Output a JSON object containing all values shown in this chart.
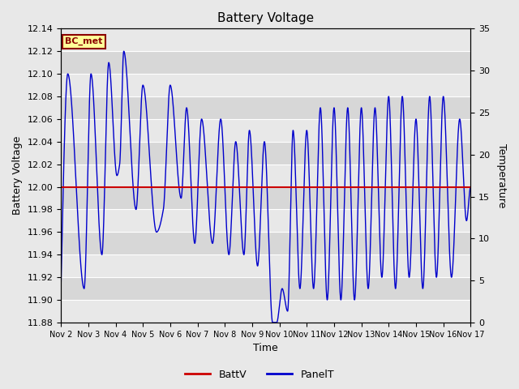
{
  "title": "Battery Voltage",
  "xlabel": "Time",
  "ylabel_left": "Battery Voltage",
  "ylabel_right": "Temperature",
  "ylim_left": [
    11.88,
    12.14
  ],
  "ylim_right": [
    0,
    35
  ],
  "batt_v": 12.0,
  "label_text": "BC_met",
  "legend_battv": "BattV",
  "legend_panelt": "PanelT",
  "background_color": "#e8e8e8",
  "batt_color": "#cc0000",
  "panel_color": "#0000cc",
  "xtick_labels": [
    "Nov 2",
    "Nov 3",
    "Nov 4",
    "Nov 5",
    "Nov 6",
    "Nov 7",
    "Nov 8",
    "Nov 9",
    "Nov 10",
    "Nov 11",
    "Nov 12",
    "Nov 13",
    "Nov 14",
    "Nov 15",
    "Nov 16",
    "Nov 17"
  ],
  "yticks_left": [
    11.88,
    11.9,
    11.92,
    11.94,
    11.96,
    11.98,
    12.0,
    12.02,
    12.04,
    12.06,
    12.08,
    12.1,
    12.12,
    12.14
  ],
  "yticks_right": [
    0,
    5,
    10,
    15,
    20,
    25,
    30,
    35
  ]
}
